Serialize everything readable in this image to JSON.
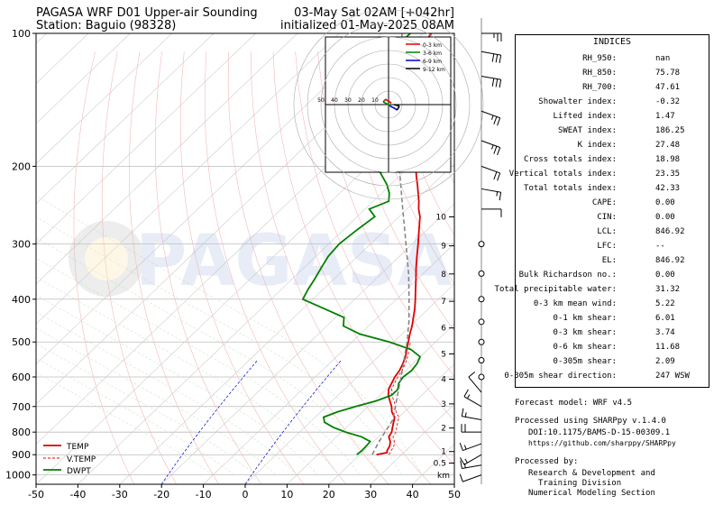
{
  "title": {
    "left_line1": "PAGASA WRF D01 Upper-air Sounding",
    "left_line2": "Station: Baguio (98328)",
    "right_line1": "03-May Sat 02AM [+042hr]",
    "right_line2": "initialized 01-May-2025 08AM"
  },
  "watermark": "PAGASA",
  "chart_data": {
    "type": "line",
    "subtype": "skew-T log-P sounding",
    "xlabel": "",
    "ylabel": "",
    "x_ticks": [
      "-50",
      "-40",
      "-30",
      "-20",
      "-10",
      "0",
      "10",
      "20",
      "30",
      "40",
      "50"
    ],
    "xlim": [
      -50,
      50
    ],
    "y_ticks": [
      "100",
      "200",
      "300",
      "400",
      "500",
      "600",
      "700",
      "800",
      "900",
      "1000"
    ],
    "ylim": [
      1050,
      100
    ],
    "y_scale": "log",
    "height_ticks": [
      "0.5",
      "1",
      "2",
      "3",
      "4",
      "5",
      "6",
      "7",
      "8",
      "9",
      "10"
    ],
    "height_unit": "km",
    "legend_placement": "lower-left",
    "series": [
      {
        "name": "TEMP",
        "color": "#e00000",
        "p": [
          900,
          890,
          880,
          860,
          840,
          820,
          800,
          780,
          760,
          740,
          720,
          700,
          680,
          660,
          640,
          620,
          600,
          580,
          560,
          540,
          520,
          500,
          480,
          460,
          440,
          420,
          400,
          380,
          360,
          340,
          320,
          300,
          280,
          260,
          250,
          240,
          230,
          220,
          210,
          200,
          190,
          180,
          170,
          160,
          150,
          140,
          130,
          125,
          120,
          115,
          110,
          105,
          100
        ],
        "t": [
          24,
          26,
          25.5,
          25,
          24,
          22.5,
          22,
          21,
          20,
          19,
          17,
          15.6,
          13.8,
          12,
          10.6,
          9.8,
          9,
          8.5,
          7.6,
          6.5,
          5,
          3.5,
          1.9,
          0.4,
          -1.4,
          -3.3,
          -5.5,
          -7.9,
          -10.4,
          -13.1,
          -15.8,
          -18.6,
          -21.7,
          -25,
          -27.2,
          -29.1,
          -31.3,
          -33.6,
          -36.1,
          -38.5,
          -41,
          -44,
          -47.1,
          -50.4,
          -53.6,
          -57,
          -60.6,
          -62.8,
          -64.6,
          -65.8,
          -66.6,
          -67.3,
          -68
        ]
      },
      {
        "name": "V.TEMP",
        "color": "#e00000",
        "p": [
          900,
          880,
          860,
          840,
          820,
          800,
          780,
          760,
          740,
          720,
          700,
          680,
          660,
          640,
          620,
          600,
          580,
          560,
          540,
          520,
          500
        ],
        "t": [
          27,
          26.5,
          26,
          25,
          23.5,
          23,
          22,
          21,
          20,
          18,
          16.5,
          14.8,
          12.8,
          11.3,
          10.5,
          9.7,
          9.1,
          8.2,
          7,
          5.6,
          4
        ]
      },
      {
        "name": "DWPT",
        "color": "#008000",
        "p": [
          900,
          880,
          860,
          840,
          820,
          800,
          780,
          760,
          740,
          720,
          700,
          680,
          660,
          640,
          620,
          600,
          580,
          560,
          540,
          520,
          500,
          480,
          460,
          440,
          420,
          400,
          380,
          360,
          340,
          320,
          300,
          280,
          260,
          250,
          240,
          230,
          220,
          210,
          200,
          190,
          180,
          170,
          160,
          150,
          140,
          130,
          125,
          120,
          115,
          110,
          105,
          100
        ],
        "t": [
          19.3,
          19.5,
          19.4,
          19.2,
          16,
          11,
          6.8,
          3.5,
          2,
          4,
          7,
          10.5,
          12.8,
          12.8,
          11.5,
          11,
          11.4,
          11,
          10,
          6,
          -1,
          -10,
          -16,
          -18,
          -25,
          -32.4,
          -33.6,
          -34.6,
          -35.8,
          -37,
          -37.5,
          -36.8,
          -35.8,
          -39,
          -36.3,
          -38.2,
          -40.9,
          -44.3,
          -47.9,
          -53.5,
          -60,
          -64.5,
          -66.6,
          -67.8,
          -69,
          -70,
          -70.7,
          -71.5,
          -72.1,
          -73,
          -73.2,
          -73
        ]
      },
      {
        "name": "",
        "color": "#808080",
        "dash": "parcel",
        "p": [
          900,
          850,
          800,
          750,
          700,
          650,
          600,
          550,
          500,
          450,
          400,
          350,
          300,
          250,
          200,
          150,
          125,
          100
        ],
        "t": [
          23,
          21.6,
          20.4,
          19.2,
          16.5,
          13.6,
          10.5,
          7,
          3.2,
          -1.4,
          -7,
          -13.5,
          -21.5,
          -31,
          -42.5,
          -56,
          -65,
          -75
        ]
      }
    ],
    "hodograph": {
      "rings_label": [
        "10",
        "20",
        "30",
        "40",
        "50"
      ],
      "legend": [
        {
          "name": "0-3 km",
          "color": "#e00000"
        },
        {
          "name": "3-6 km",
          "color": "#008000"
        },
        {
          "name": "6-9 km",
          "color": "#0000cc"
        },
        {
          "name": "9-12 km",
          "color": "#000000"
        }
      ],
      "u": [
        2,
        1,
        -1,
        -2,
        -3,
        -4,
        -2,
        0,
        1,
        3,
        5,
        6,
        7,
        8,
        4
      ],
      "v": [
        1,
        2,
        3,
        4,
        3,
        2,
        1,
        0,
        -1,
        -2,
        -3,
        -4,
        -3,
        -1,
        0
      ]
    }
  },
  "indices_title": "INDICES",
  "indices": [
    {
      "k": "RH_950:",
      "v": "nan"
    },
    {
      "k": "RH_850:",
      "v": "75.78"
    },
    {
      "k": "RH_700:",
      "v": "47.61"
    },
    {
      "k": "Showalter index:",
      "v": "-0.32"
    },
    {
      "k": "Lifted index:",
      "v": "1.47"
    },
    {
      "k": "SWEAT index:",
      "v": "186.25"
    },
    {
      "k": "K index:",
      "v": "27.48"
    },
    {
      "k": "Cross totals index:",
      "v": "18.98"
    },
    {
      "k": "Vertical totals index:",
      "v": "23.35"
    },
    {
      "k": "Total totals index:",
      "v": "42.33"
    },
    {
      "k": "CAPE:",
      "v": "0.00"
    },
    {
      "k": "CIN:",
      "v": "0.00"
    },
    {
      "k": "LCL:",
      "v": "846.92"
    },
    {
      "k": "LFC:",
      "v": "--"
    },
    {
      "k": "EL:",
      "v": "846.92"
    },
    {
      "k": "Bulk Richardson no.:",
      "v": "0.00"
    },
    {
      "k": "Total precipitable water:",
      "v": "31.32"
    },
    {
      "k": "0-3 km mean wind:",
      "v": "5.22"
    },
    {
      "k": "0-1 km shear:",
      "v": "6.01"
    },
    {
      "k": "0-3 km shear:",
      "v": "3.74"
    },
    {
      "k": "0-6 km shear:",
      "v": "11.68"
    },
    {
      "k": "0-305m shear:",
      "v": "2.09"
    },
    {
      "k": "0-305m shear direction:",
      "v": "247 WSW"
    }
  ],
  "footer": {
    "model": "Forecast model: WRF v4.5",
    "processed": "Processed using SHARPpy v.1.4.0",
    "doi": "DOI:10.1175/BAMS-D-15-00309.1",
    "url": "https://github.com/sharppy/SHARPpy",
    "by": "Processed by:",
    "org1": "Research & Development and",
    "org2": "Training Division",
    "org3": "Numerical Modeling Section"
  },
  "wind_barbs": {
    "p": [
      1000,
      950,
      900,
      850,
      800,
      750,
      700,
      650,
      600,
      550,
      500,
      450,
      400,
      350,
      300,
      250,
      225,
      200,
      175,
      150,
      125,
      110,
      100
    ],
    "dir": [
      250,
      260,
      240,
      250,
      270,
      280,
      300,
      320,
      340,
      350,
      10,
      20,
      30,
      60,
      80,
      90,
      100,
      110,
      110,
      110,
      100,
      100,
      90
    ],
    "spd": [
      10,
      15,
      15,
      15,
      20,
      15,
      15,
      10,
      5,
      5,
      5,
      5,
      5,
      5,
      5,
      10,
      15,
      20,
      25,
      25,
      30,
      30,
      25
    ]
  }
}
